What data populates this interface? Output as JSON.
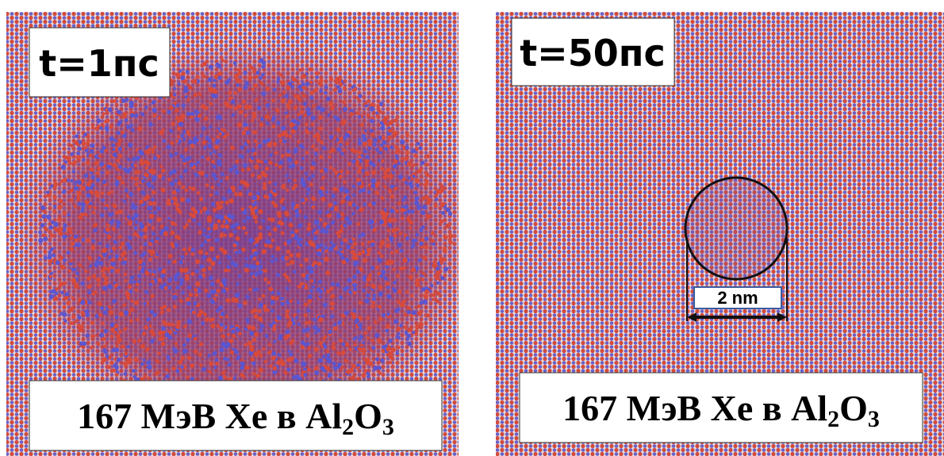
{
  "panels": [
    {
      "time_label": "t=1пс",
      "caption": {
        "main": "167 МэВ Xe в Al",
        "sub1": "2",
        "mid": "O",
        "sub2": "3"
      }
    },
    {
      "time_label": "t=50пс",
      "caption": {
        "main": "167 МэВ Xe в Al",
        "sub1": "2",
        "mid": "O",
        "sub2": "3"
      },
      "scale_label": "2 nm"
    }
  ]
}
